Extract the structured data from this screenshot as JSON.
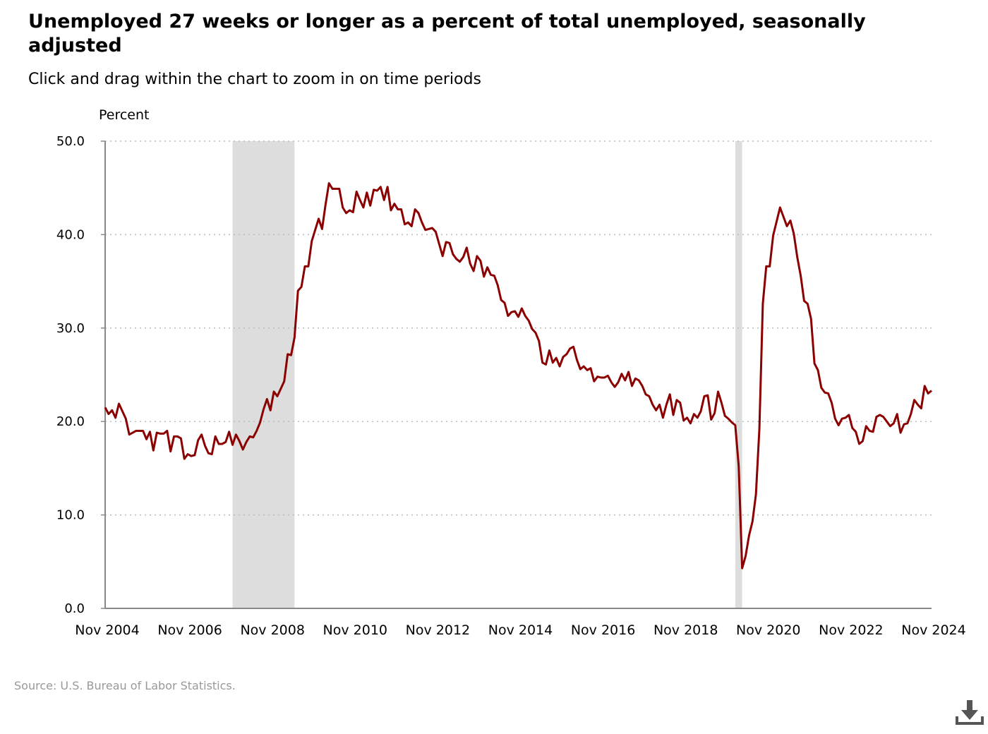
{
  "title": "Unemployed 27 weeks or longer as a percent of total unemployed, seasonally adjusted",
  "subtitle": "Click and drag within the chart to zoom in on time periods",
  "source": "Source: U.S. Bureau of Labor Statistics.",
  "download_icon": "download-icon",
  "colors": {
    "line": "#8b0000",
    "recession": "#dddddd",
    "grid": "#bbbbbb",
    "axis": "#888888"
  },
  "chart_data": {
    "type": "line",
    "ylabel": "Percent",
    "ylim": [
      0,
      50
    ],
    "y_ticks": [
      "0.0",
      "10.0",
      "20.0",
      "30.0",
      "40.0",
      "50.0"
    ],
    "x_ticks": [
      "Nov 2004",
      "Nov 2006",
      "Nov 2008",
      "Nov 2010",
      "Nov 2012",
      "Nov 2014",
      "Nov 2016",
      "Nov 2018",
      "Nov 2020",
      "Nov 2022",
      "Nov 2024"
    ],
    "x_range": [
      "2004-11",
      "2024-11"
    ],
    "grid": true,
    "recessions": [
      {
        "start": "2007-12",
        "end": "2009-06"
      },
      {
        "start": "2020-02",
        "end": "2020-04"
      }
    ],
    "series": [
      {
        "points": [
          [
            "2004-11",
            21.5
          ],
          [
            "2004-12",
            20.8
          ],
          [
            "2005-01",
            21.2
          ],
          [
            "2005-02",
            20.4
          ],
          [
            "2005-03",
            21.9
          ],
          [
            "2005-04",
            21.1
          ],
          [
            "2005-05",
            20.3
          ],
          [
            "2005-06",
            18.6
          ],
          [
            "2005-07",
            18.8
          ],
          [
            "2005-08",
            19.0
          ],
          [
            "2005-09",
            19.0
          ],
          [
            "2005-10",
            19.0
          ],
          [
            "2005-11",
            18.1
          ],
          [
            "2005-12",
            18.9
          ],
          [
            "2006-01",
            16.9
          ],
          [
            "2006-02",
            18.8
          ],
          [
            "2006-03",
            18.7
          ],
          [
            "2006-04",
            18.7
          ],
          [
            "2006-05",
            19.0
          ],
          [
            "2006-06",
            16.8
          ],
          [
            "2006-07",
            18.4
          ],
          [
            "2006-08",
            18.4
          ],
          [
            "2006-09",
            18.2
          ],
          [
            "2006-10",
            16.0
          ],
          [
            "2006-11",
            16.5
          ],
          [
            "2006-12",
            16.3
          ],
          [
            "2007-01",
            16.4
          ],
          [
            "2007-02",
            18.0
          ],
          [
            "2007-03",
            18.6
          ],
          [
            "2007-04",
            17.4
          ],
          [
            "2007-05",
            16.6
          ],
          [
            "2007-06",
            16.5
          ],
          [
            "2007-07",
            18.4
          ],
          [
            "2007-08",
            17.6
          ],
          [
            "2007-09",
            17.6
          ],
          [
            "2007-10",
            17.8
          ],
          [
            "2007-11",
            18.9
          ],
          [
            "2007-12",
            17.5
          ],
          [
            "2008-01",
            18.6
          ],
          [
            "2008-02",
            17.9
          ],
          [
            "2008-03",
            17.0
          ],
          [
            "2008-04",
            17.8
          ],
          [
            "2008-05",
            18.4
          ],
          [
            "2008-06",
            18.3
          ],
          [
            "2008-07",
            19.0
          ],
          [
            "2008-08",
            19.9
          ],
          [
            "2008-09",
            21.3
          ],
          [
            "2008-10",
            22.4
          ],
          [
            "2008-11",
            21.2
          ],
          [
            "2008-12",
            23.2
          ],
          [
            "2009-01",
            22.7
          ],
          [
            "2009-02",
            23.5
          ],
          [
            "2009-03",
            24.3
          ],
          [
            "2009-04",
            27.2
          ],
          [
            "2009-05",
            27.1
          ],
          [
            "2009-06",
            29.0
          ],
          [
            "2009-07",
            34.0
          ],
          [
            "2009-08",
            34.4
          ],
          [
            "2009-09",
            36.6
          ],
          [
            "2009-10",
            36.6
          ],
          [
            "2009-11",
            39.3
          ],
          [
            "2009-12",
            40.5
          ],
          [
            "2010-01",
            41.7
          ],
          [
            "2010-02",
            40.6
          ],
          [
            "2010-03",
            43.2
          ],
          [
            "2010-04",
            45.5
          ],
          [
            "2010-05",
            44.9
          ],
          [
            "2010-06",
            44.9
          ],
          [
            "2010-07",
            44.9
          ],
          [
            "2010-08",
            42.9
          ],
          [
            "2010-09",
            42.3
          ],
          [
            "2010-10",
            42.6
          ],
          [
            "2010-11",
            42.4
          ],
          [
            "2010-12",
            44.6
          ],
          [
            "2011-01",
            43.7
          ],
          [
            "2011-02",
            42.9
          ],
          [
            "2011-03",
            44.5
          ],
          [
            "2011-04",
            43.1
          ],
          [
            "2011-05",
            44.8
          ],
          [
            "2011-06",
            44.7
          ],
          [
            "2011-07",
            45.1
          ],
          [
            "2011-08",
            43.7
          ],
          [
            "2011-09",
            45.1
          ],
          [
            "2011-10",
            42.6
          ],
          [
            "2011-11",
            43.3
          ],
          [
            "2011-12",
            42.7
          ],
          [
            "2012-01",
            42.7
          ],
          [
            "2012-02",
            41.1
          ],
          [
            "2012-03",
            41.3
          ],
          [
            "2012-04",
            40.9
          ],
          [
            "2012-05",
            42.7
          ],
          [
            "2012-06",
            42.3
          ],
          [
            "2012-07",
            41.3
          ],
          [
            "2012-08",
            40.5
          ],
          [
            "2012-09",
            40.6
          ],
          [
            "2012-10",
            40.7
          ],
          [
            "2012-11",
            40.3
          ],
          [
            "2012-12",
            39.0
          ],
          [
            "2013-01",
            37.7
          ],
          [
            "2013-02",
            39.2
          ],
          [
            "2013-03",
            39.1
          ],
          [
            "2013-04",
            37.9
          ],
          [
            "2013-05",
            37.4
          ],
          [
            "2013-06",
            37.1
          ],
          [
            "2013-07",
            37.6
          ],
          [
            "2013-08",
            38.6
          ],
          [
            "2013-09",
            36.9
          ],
          [
            "2013-10",
            36.1
          ],
          [
            "2013-11",
            37.7
          ],
          [
            "2013-12",
            37.2
          ],
          [
            "2014-01",
            35.5
          ],
          [
            "2014-02",
            36.5
          ],
          [
            "2014-03",
            35.7
          ],
          [
            "2014-04",
            35.6
          ],
          [
            "2014-05",
            34.6
          ],
          [
            "2014-06",
            33.0
          ],
          [
            "2014-07",
            32.7
          ],
          [
            "2014-08",
            31.3
          ],
          [
            "2014-09",
            31.7
          ],
          [
            "2014-10",
            31.8
          ],
          [
            "2014-11",
            31.2
          ],
          [
            "2014-12",
            32.1
          ],
          [
            "2015-01",
            31.3
          ],
          [
            "2015-02",
            30.8
          ],
          [
            "2015-03",
            29.9
          ],
          [
            "2015-04",
            29.5
          ],
          [
            "2015-05",
            28.6
          ],
          [
            "2015-06",
            26.3
          ],
          [
            "2015-07",
            26.1
          ],
          [
            "2015-08",
            27.6
          ],
          [
            "2015-09",
            26.3
          ],
          [
            "2015-10",
            26.8
          ],
          [
            "2015-11",
            25.9
          ],
          [
            "2015-12",
            26.9
          ],
          [
            "2016-01",
            27.2
          ],
          [
            "2016-02",
            27.8
          ],
          [
            "2016-03",
            28.0
          ],
          [
            "2016-04",
            26.6
          ],
          [
            "2016-05",
            25.6
          ],
          [
            "2016-06",
            25.9
          ],
          [
            "2016-07",
            25.5
          ],
          [
            "2016-08",
            25.7
          ],
          [
            "2016-09",
            24.3
          ],
          [
            "2016-10",
            24.8
          ],
          [
            "2016-11",
            24.7
          ],
          [
            "2016-12",
            24.7
          ],
          [
            "2017-01",
            24.9
          ],
          [
            "2017-02",
            24.2
          ],
          [
            "2017-03",
            23.7
          ],
          [
            "2017-04",
            24.2
          ],
          [
            "2017-05",
            25.1
          ],
          [
            "2017-06",
            24.4
          ],
          [
            "2017-07",
            25.3
          ],
          [
            "2017-08",
            23.8
          ],
          [
            "2017-09",
            24.6
          ],
          [
            "2017-10",
            24.4
          ],
          [
            "2017-11",
            23.8
          ],
          [
            "2017-12",
            22.9
          ],
          [
            "2018-01",
            22.7
          ],
          [
            "2018-02",
            21.8
          ],
          [
            "2018-03",
            21.2
          ],
          [
            "2018-04",
            21.8
          ],
          [
            "2018-05",
            20.4
          ],
          [
            "2018-06",
            21.8
          ],
          [
            "2018-07",
            22.9
          ],
          [
            "2018-08",
            20.7
          ],
          [
            "2018-09",
            22.3
          ],
          [
            "2018-10",
            22.0
          ],
          [
            "2018-11",
            20.1
          ],
          [
            "2018-12",
            20.4
          ],
          [
            "2019-01",
            19.8
          ],
          [
            "2019-02",
            20.8
          ],
          [
            "2019-03",
            20.4
          ],
          [
            "2019-04",
            21.1
          ],
          [
            "2019-05",
            22.7
          ],
          [
            "2019-06",
            22.8
          ],
          [
            "2019-07",
            20.2
          ],
          [
            "2019-08",
            20.9
          ],
          [
            "2019-09",
            23.2
          ],
          [
            "2019-10",
            22.0
          ],
          [
            "2019-11",
            20.6
          ],
          [
            "2019-12",
            20.3
          ],
          [
            "2020-01",
            19.9
          ],
          [
            "2020-02",
            19.6
          ],
          [
            "2020-03",
            15.2
          ],
          [
            "2020-04",
            4.3
          ],
          [
            "2020-05",
            5.6
          ],
          [
            "2020-06",
            7.8
          ],
          [
            "2020-07",
            9.3
          ],
          [
            "2020-08",
            12.2
          ],
          [
            "2020-09",
            19.2
          ],
          [
            "2020-10",
            32.6
          ],
          [
            "2020-11",
            36.6
          ],
          [
            "2020-12",
            36.6
          ],
          [
            "2021-01",
            39.9
          ],
          [
            "2021-02",
            41.4
          ],
          [
            "2021-03",
            42.9
          ],
          [
            "2021-04",
            41.9
          ],
          [
            "2021-05",
            40.9
          ],
          [
            "2021-06",
            41.5
          ],
          [
            "2021-07",
            40.1
          ],
          [
            "2021-08",
            37.6
          ],
          [
            "2021-09",
            35.6
          ],
          [
            "2021-10",
            32.9
          ],
          [
            "2021-11",
            32.6
          ],
          [
            "2021-12",
            31.0
          ],
          [
            "2022-01",
            26.2
          ],
          [
            "2022-02",
            25.5
          ],
          [
            "2022-03",
            23.6
          ],
          [
            "2022-04",
            23.1
          ],
          [
            "2022-05",
            23.0
          ],
          [
            "2022-06",
            22.0
          ],
          [
            "2022-07",
            20.3
          ],
          [
            "2022-08",
            19.6
          ],
          [
            "2022-09",
            20.3
          ],
          [
            "2022-10",
            20.4
          ],
          [
            "2022-11",
            20.7
          ],
          [
            "2022-12",
            19.3
          ],
          [
            "2023-01",
            18.9
          ],
          [
            "2023-02",
            17.6
          ],
          [
            "2023-03",
            17.9
          ],
          [
            "2023-04",
            19.5
          ],
          [
            "2023-05",
            19.0
          ],
          [
            "2023-06",
            18.9
          ],
          [
            "2023-07",
            20.5
          ],
          [
            "2023-08",
            20.7
          ],
          [
            "2023-09",
            20.5
          ],
          [
            "2023-10",
            20.0
          ],
          [
            "2023-11",
            19.5
          ],
          [
            "2023-12",
            19.8
          ],
          [
            "2024-01",
            20.8
          ],
          [
            "2024-02",
            18.8
          ],
          [
            "2024-03",
            19.7
          ],
          [
            "2024-04",
            19.8
          ],
          [
            "2024-05",
            20.8
          ],
          [
            "2024-06",
            22.3
          ],
          [
            "2024-07",
            21.8
          ],
          [
            "2024-08",
            21.4
          ],
          [
            "2024-09",
            23.8
          ],
          [
            "2024-10",
            23.0
          ],
          [
            "2024-11",
            23.3
          ]
        ]
      }
    ]
  }
}
